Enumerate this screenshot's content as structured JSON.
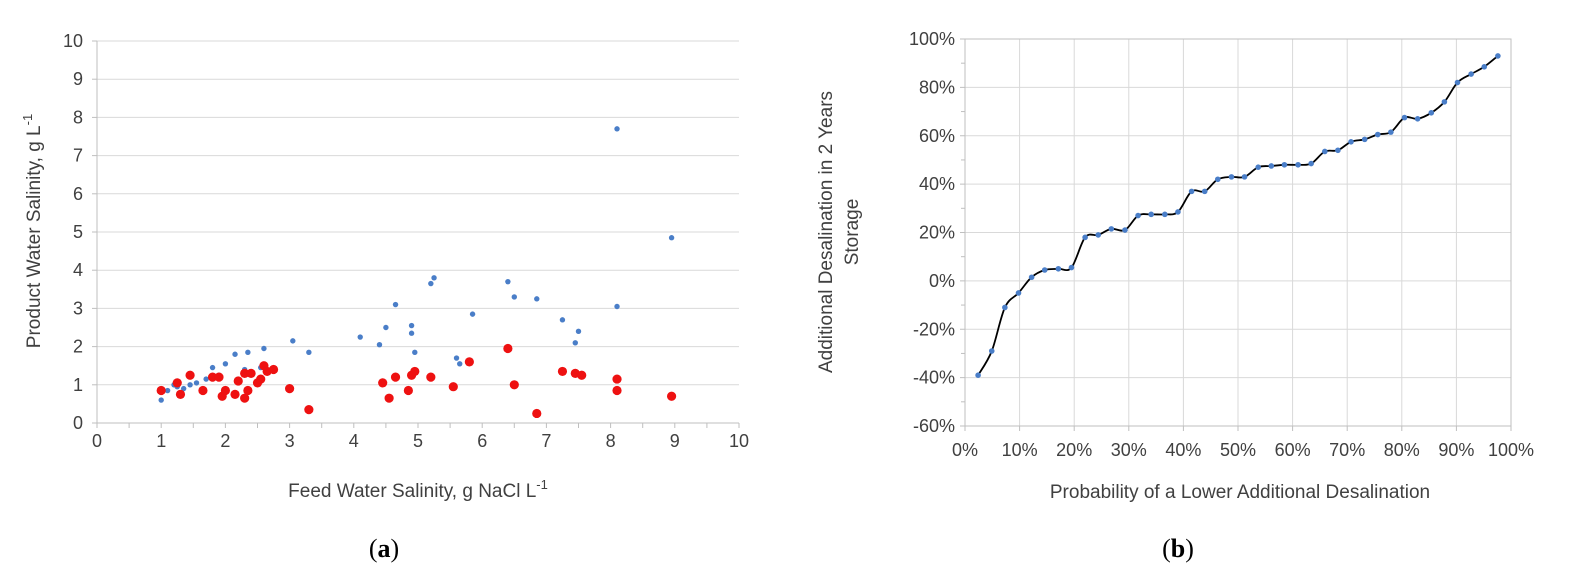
{
  "colors": {
    "blue_points": "#4a7ec8",
    "red_points": "#ee1111",
    "line": "#000000",
    "grid": "#d9d9d9",
    "axis": "#bfbfbf",
    "text": "#404040"
  },
  "chart_data": [
    {
      "type": "scatter",
      "panel_label": {
        "open": "(",
        "letter": "a",
        "close": ")"
      },
      "title": "",
      "xlabel": {
        "text": "Feed Water Salinity, g NaCl L",
        "sup": "-1"
      },
      "ylabel": {
        "text": "Product Water Salinity, g L",
        "sup": "-1"
      },
      "xlim": [
        0,
        10
      ],
      "ylim": [
        0,
        10
      ],
      "xticks": [
        "0",
        "1",
        "2",
        "3",
        "4",
        "5",
        "6",
        "7",
        "8",
        "9",
        "10"
      ],
      "yticks": [
        "0",
        "1",
        "2",
        "3",
        "4",
        "5",
        "6",
        "7",
        "8",
        "9",
        "10"
      ],
      "grid": "horizontal",
      "legend": "none",
      "series": [
        {
          "marker": "small-blue-dot",
          "color": "#4a7ec8",
          "points": [
            [
              1.0,
              0.6
            ],
            [
              1.1,
              0.85
            ],
            [
              1.2,
              1.0
            ],
            [
              1.25,
              0.95
            ],
            [
              1.35,
              0.9
            ],
            [
              1.45,
              1.0
            ],
            [
              1.55,
              1.05
            ],
            [
              1.7,
              1.15
            ],
            [
              1.8,
              1.45
            ],
            [
              1.9,
              1.25
            ],
            [
              2.0,
              1.55
            ],
            [
              2.15,
              1.8
            ],
            [
              2.3,
              1.4
            ],
            [
              2.35,
              1.85
            ],
            [
              2.55,
              1.45
            ],
            [
              2.6,
              1.95
            ],
            [
              3.05,
              2.15
            ],
            [
              3.3,
              1.85
            ],
            [
              4.1,
              2.25
            ],
            [
              4.4,
              2.05
            ],
            [
              4.5,
              2.5
            ],
            [
              4.65,
              3.1
            ],
            [
              4.9,
              2.55
            ],
            [
              4.9,
              2.35
            ],
            [
              4.95,
              1.85
            ],
            [
              5.2,
              3.65
            ],
            [
              5.25,
              3.8
            ],
            [
              5.6,
              1.7
            ],
            [
              5.65,
              1.55
            ],
            [
              5.85,
              2.85
            ],
            [
              6.4,
              3.7
            ],
            [
              6.5,
              3.3
            ],
            [
              6.85,
              3.25
            ],
            [
              7.25,
              2.7
            ],
            [
              7.45,
              2.1
            ],
            [
              7.5,
              2.4
            ],
            [
              8.1,
              3.05
            ],
            [
              8.1,
              7.7
            ],
            [
              8.95,
              4.85
            ]
          ]
        },
        {
          "marker": "large-red-dot",
          "color": "#ee1111",
          "points": [
            [
              1.0,
              0.85
            ],
            [
              1.25,
              1.05
            ],
            [
              1.3,
              0.75
            ],
            [
              1.45,
              1.25
            ],
            [
              1.65,
              0.85
            ],
            [
              1.8,
              1.2
            ],
            [
              1.9,
              1.2
            ],
            [
              1.95,
              0.7
            ],
            [
              2.0,
              0.85
            ],
            [
              2.15,
              0.75
            ],
            [
              2.2,
              1.1
            ],
            [
              2.3,
              0.65
            ],
            [
              2.3,
              1.3
            ],
            [
              2.35,
              0.85
            ],
            [
              2.4,
              1.3
            ],
            [
              2.5,
              1.05
            ],
            [
              2.55,
              1.15
            ],
            [
              2.6,
              1.5
            ],
            [
              2.65,
              1.35
            ],
            [
              2.75,
              1.4
            ],
            [
              3.0,
              0.9
            ],
            [
              3.3,
              0.35
            ],
            [
              4.45,
              1.05
            ],
            [
              4.55,
              0.65
            ],
            [
              4.65,
              1.2
            ],
            [
              4.85,
              0.85
            ],
            [
              4.9,
              1.25
            ],
            [
              4.95,
              1.35
            ],
            [
              5.2,
              1.2
            ],
            [
              5.55,
              0.95
            ],
            [
              5.8,
              1.6
            ],
            [
              6.4,
              1.95
            ],
            [
              6.5,
              1.0
            ],
            [
              6.85,
              0.25
            ],
            [
              7.25,
              1.35
            ],
            [
              7.45,
              1.3
            ],
            [
              7.55,
              1.25
            ],
            [
              8.1,
              1.15
            ],
            [
              8.1,
              0.85
            ],
            [
              8.95,
              0.7
            ]
          ]
        }
      ]
    },
    {
      "type": "line",
      "panel_label": {
        "open": "(",
        "letter": "b",
        "close": ")"
      },
      "title": "",
      "xlabel": "Probability of a Lower Additional Desalination",
      "ylabel_lines": [
        "Additional Desalination in 2 Years",
        "Storage"
      ],
      "xlim": [
        0,
        100
      ],
      "ylim": [
        -60,
        100
      ],
      "xticks": [
        "0%",
        "10%",
        "20%",
        "30%",
        "40%",
        "50%",
        "60%",
        "70%",
        "80%",
        "90%",
        "100%"
      ],
      "yticks": [
        "-60%",
        "-40%",
        "-20%",
        "0%",
        "20%",
        "40%",
        "60%",
        "80%",
        "100%"
      ],
      "grid": "both",
      "legend": "none",
      "markers": true,
      "x": [
        2.4,
        4.9,
        7.3,
        9.8,
        12.2,
        14.6,
        17.1,
        19.5,
        22.0,
        24.4,
        26.8,
        29.3,
        31.7,
        34.1,
        36.6,
        39.0,
        41.5,
        43.9,
        46.3,
        48.8,
        51.2,
        53.7,
        56.1,
        58.5,
        61.0,
        63.4,
        65.9,
        68.3,
        70.7,
        73.2,
        75.6,
        78.0,
        80.5,
        82.9,
        85.4,
        87.8,
        90.2,
        92.7,
        95.1,
        97.6
      ],
      "y": [
        -39,
        -29,
        -11,
        -5,
        1.5,
        4.5,
        5,
        5.5,
        18,
        19,
        21.5,
        21,
        27,
        27.5,
        27.5,
        28.5,
        37,
        37,
        42,
        43,
        43,
        47,
        47.5,
        48,
        48,
        48.5,
        53.5,
        54,
        57.5,
        58.5,
        60.5,
        61.5,
        67.5,
        67,
        69.5,
        74,
        82,
        85.5,
        88.5,
        93
      ]
    }
  ]
}
